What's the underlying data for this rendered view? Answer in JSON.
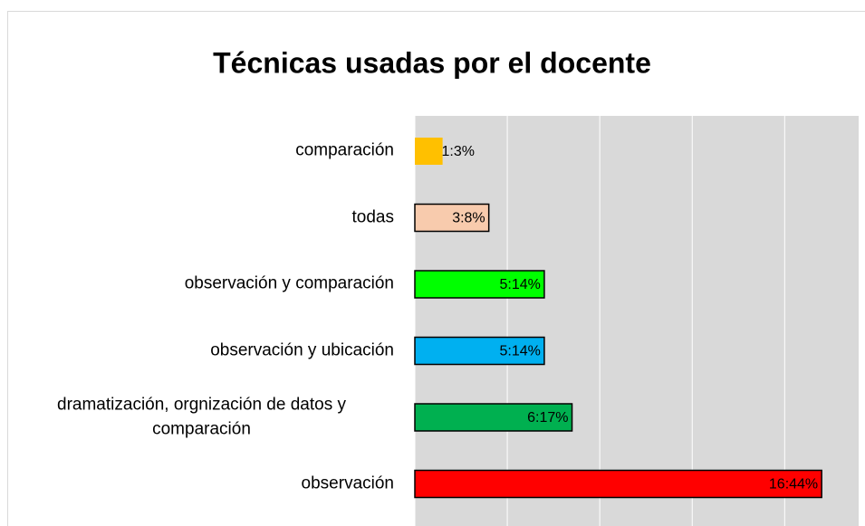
{
  "chart_data": {
    "type": "bar",
    "orientation": "horizontal",
    "title": "Técnicas usadas por el docente",
    "categories": [
      "comparación",
      "todas",
      "observación y comparación",
      "observación y ubicación",
      "dramatización, orgnización de datos y comparación",
      "observación"
    ],
    "values": [
      3,
      8,
      14,
      14,
      17,
      44
    ],
    "value_labels": [
      "1:3%",
      "3:8%",
      "5:14%",
      "5:14%",
      "6:17%",
      "16:44%"
    ],
    "colors": [
      "#ffc000",
      "#f8cbad",
      "#00ff00",
      "#00b0f0",
      "#00b050",
      "#ff0000"
    ],
    "xlim": [
      0,
      48
    ],
    "xticks": [
      0,
      10,
      20,
      30,
      40
    ],
    "grid": true
  }
}
